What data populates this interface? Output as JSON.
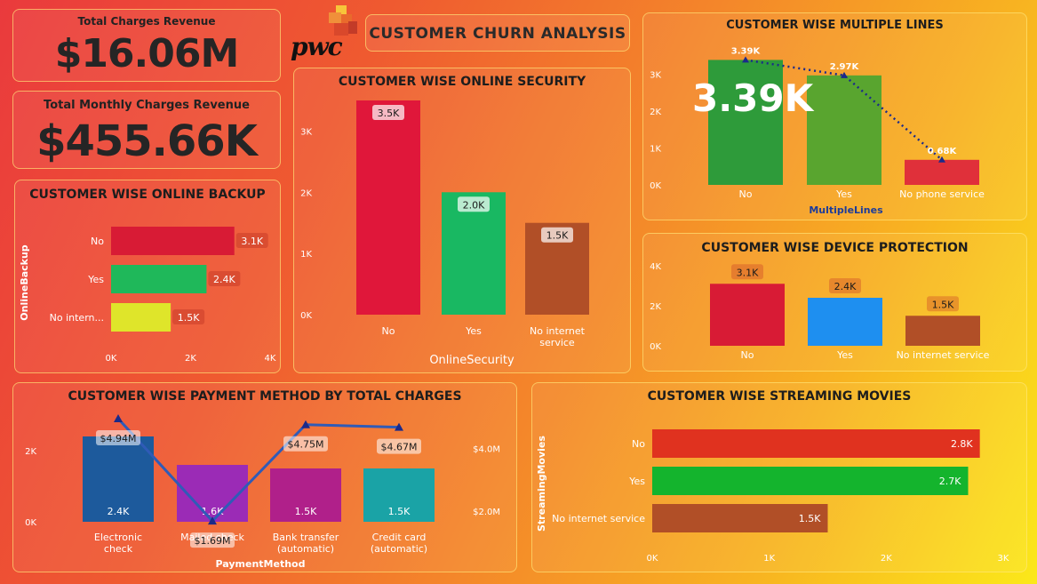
{
  "page_title": "CUSTOMER CHURN ANALYSIS",
  "logo_text": "pwc",
  "kpis": {
    "total_charges": {
      "label": "Total Charges Revenue",
      "value": "$16.06M"
    },
    "monthly_charges": {
      "label": "Total Monthly Charges Revenue",
      "value": "$455.66K"
    }
  },
  "chart_data": [
    {
      "id": "online_backup",
      "type": "bar",
      "orientation": "horizontal",
      "title": "CUSTOMER WISE ONLINE BACKUP",
      "ylabel": "OnlineBackup",
      "categories": [
        "No",
        "Yes",
        "No intern..."
      ],
      "values": [
        3100,
        2400,
        1500
      ],
      "data_labels": [
        "3.1K",
        "2.4K",
        "1.5K"
      ],
      "colors": [
        "#d81b35",
        "#1fb85a",
        "#dfe52a"
      ],
      "xlim": [
        0,
        4000
      ],
      "ticks": [
        "0K",
        "2K",
        "4K"
      ]
    },
    {
      "id": "online_security",
      "type": "bar",
      "title": "CUSTOMER WISE ONLINE SECURITY",
      "xlabel": "OnlineSecurity",
      "categories": [
        "No",
        "Yes",
        "No internet service"
      ],
      "values": [
        3500,
        2000,
        1500
      ],
      "data_labels": [
        "3.5K",
        "2.0K",
        "1.5K"
      ],
      "colors": [
        "#e0173a",
        "#19b862",
        "#b14f27"
      ],
      "ylim": [
        0,
        3500
      ],
      "ticks": [
        "0K",
        "1K",
        "2K",
        "3K"
      ]
    },
    {
      "id": "multiple_lines",
      "type": "bar",
      "title": "CUSTOMER WISE MULTIPLE LINES",
      "xlabel": "MultipleLines",
      "categories": [
        "No",
        "Yes",
        "No phone service"
      ],
      "values": [
        3390,
        2970,
        680
      ],
      "line_values": [
        3390,
        2970,
        680
      ],
      "data_labels": [
        "3.39K",
        "2.97K",
        "0.68K"
      ],
      "highlight": "3.39K",
      "colors": [
        "#2e9b3a",
        "#59a52f",
        "#e0303a"
      ],
      "ylim": [
        0,
        3400
      ],
      "ticks": [
        "0K",
        "1K",
        "2K",
        "3K"
      ]
    },
    {
      "id": "device_protection",
      "type": "bar",
      "title": "CUSTOMER WISE DEVICE PROTECTION",
      "categories": [
        "No",
        "Yes",
        "No internet service"
      ],
      "values": [
        3100,
        2400,
        1500
      ],
      "data_labels": [
        "3.1K",
        "2.4K",
        "1.5K"
      ],
      "colors": [
        "#d81b35",
        "#1e8ff0",
        "#b14f27"
      ],
      "ylim": [
        0,
        4000
      ],
      "ticks": [
        "0K",
        "2K",
        "4K"
      ]
    },
    {
      "id": "payment_method",
      "type": "bar",
      "title": "CUSTOMER WISE PAYMENT METHOD BY TOTAL CHARGES",
      "xlabel": "PaymentMethod",
      "categories": [
        "Electronic check",
        "Mailed check",
        "Bank transfer (automatic)",
        "Credit card (automatic)"
      ],
      "values": [
        2400,
        1600,
        1500,
        1500
      ],
      "data_labels": [
        "2.4K",
        "1.6K",
        "1.5K",
        "1.5K"
      ],
      "line_values": [
        4.94,
        1.69,
        4.75,
        4.67
      ],
      "line_labels": [
        "$4.94M",
        "$1.69M",
        "$4.75M",
        "$4.67M"
      ],
      "colors": [
        "#1d5a9c",
        "#9b2bb6",
        "#b0208a",
        "#1aa3a6"
      ],
      "ylim": [
        0,
        2400
      ],
      "ticks_left": [
        "0K",
        "2K"
      ],
      "y2lim": [
        0,
        4.94
      ],
      "ticks_right": [
        "$2.0M",
        "$4.0M"
      ]
    },
    {
      "id": "streaming_movies",
      "type": "bar",
      "orientation": "horizontal",
      "title": "CUSTOMER WISE STREAMING MOVIES",
      "ylabel": "StreamingMovies",
      "categories": [
        "No",
        "Yes",
        "No internet service"
      ],
      "values": [
        2800,
        2700,
        1500
      ],
      "data_labels": [
        "2.8K",
        "2.7K",
        "1.5K"
      ],
      "colors": [
        "#e0321f",
        "#14b42d",
        "#b14f27"
      ],
      "xlim": [
        0,
        3000
      ],
      "ticks": [
        "0K",
        "1K",
        "2K",
        "3K"
      ]
    }
  ]
}
